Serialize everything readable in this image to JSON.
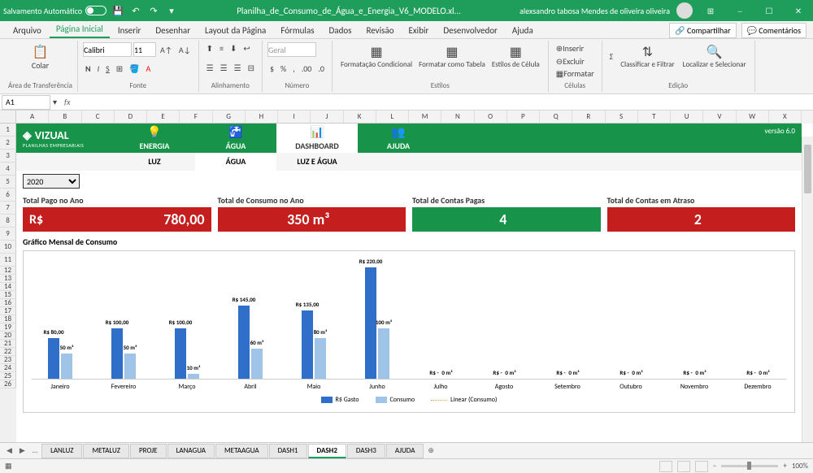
{
  "titlebar": {
    "autosave": "Salvamento Automático",
    "filename": "Planilha_de_Consumo_de_Água_e_Energia_V6_MODELO.xl...",
    "username": "alexsandro tabosa Mendes de oliveira oliveira"
  },
  "menu": {
    "items": [
      "Arquivo",
      "Página Inicial",
      "Inserir",
      "Desenhar",
      "Layout da Página",
      "Fórmulas",
      "Dados",
      "Revisão",
      "Exibir",
      "Desenvolvedor",
      "Ajuda"
    ],
    "active_index": 1,
    "share": "Compartilhar",
    "comments": "Comentários"
  },
  "ribbon": {
    "paste": "Colar",
    "clipboard_label": "Área de Transferência",
    "font_name": "Calibri",
    "font_size": "11",
    "font_label": "Fonte",
    "align_label": "Alinhamento",
    "number_format": "Geral",
    "number_label": "Número",
    "cond_format": "Formatação Condicional",
    "table_format": "Formatar como Tabela",
    "cell_styles": "Estilos de Célula",
    "styles_label": "Estilos",
    "insert": "Inserir",
    "delete": "Excluir",
    "format": "Formatar",
    "cells_label": "Células",
    "sort": "Classificar e Filtrar",
    "find": "Localizar e Selecionar",
    "editing_label": "Edição"
  },
  "formula": {
    "name_box": "A1",
    "fx": "fx"
  },
  "columns": [
    "A",
    "B",
    "C",
    "D",
    "E",
    "F",
    "G",
    "H",
    "I",
    "J",
    "K",
    "L",
    "M",
    "N",
    "O",
    "P",
    "Q",
    "R",
    "S",
    "T",
    "U",
    "V",
    "W",
    "X"
  ],
  "rows": [
    "1",
    "2",
    "3",
    "4",
    "5",
    "6",
    "7",
    "8",
    "9",
    "10",
    "11",
    "12",
    "13",
    "14",
    "15",
    "16",
    "17",
    "18",
    "19",
    "20",
    "21",
    "22",
    "23",
    "24",
    "25",
    "26"
  ],
  "dashboard": {
    "brand": "VIZUAL",
    "brand_sub": "PLANILHAS EMPRESARIAIS",
    "version": "versão 6.0",
    "nav": [
      "ENERGIA",
      "ÁGUA",
      "DASHBOARD",
      "AJUDA"
    ],
    "nav_active": 2,
    "sub_nav": [
      "LUZ",
      "ÁGUA",
      "LUZ E ÁGUA"
    ],
    "sub_active": 1,
    "year": "2020",
    "kpis": [
      {
        "label": "Total Pago no Ano",
        "prefix": "R$",
        "value": "780,00",
        "color": "red"
      },
      {
        "label": "Total de Consumo no Ano",
        "prefix": "",
        "value": "350 m³",
        "color": "red"
      },
      {
        "label": "Total de Contas Pagas",
        "prefix": "",
        "value": "4",
        "color": "green"
      },
      {
        "label": "Total de Contas em Atraso",
        "prefix": "",
        "value": "2",
        "color": "red"
      }
    ],
    "chart_title": "Gráfico Mensal de Consumo",
    "chart": {
      "type": "bar",
      "months": [
        "Janeiro",
        "Fevereiro",
        "Março",
        "Abril",
        "Maio",
        "Junho",
        "Julho",
        "Agosto",
        "Setembro",
        "Outubro",
        "Novembro",
        "Dezembro"
      ],
      "series1": [
        80,
        100,
        100,
        145,
        135,
        220,
        0,
        0,
        0,
        0,
        0,
        0
      ],
      "series2": [
        50,
        50,
        10,
        60,
        80,
        100,
        0,
        0,
        0,
        0,
        0,
        0
      ],
      "labels1": [
        "R$ 80,00",
        "R$ 100,00",
        "R$ 100,00",
        "R$ 145,00",
        "R$ 135,00",
        "R$ 220,00",
        "R$ -",
        "R$ -",
        "R$ -",
        "R$ -",
        "R$ -",
        "R$ -"
      ],
      "labels2": [
        "50 m³",
        "50 m³",
        "10 m³",
        "60 m³",
        "80 m³",
        "100 m³",
        "0 m³",
        "0 m³",
        "0 m³",
        "0 m³",
        "0 m³",
        "0 m³"
      ],
      "max_value": 220,
      "colors": {
        "s1": "#2f6fc9",
        "s2": "#a0c4e8",
        "trend": "#d4a056"
      },
      "legend": [
        "R$ Gasto",
        "Consumo",
        "Linear (Consumo)"
      ]
    }
  },
  "tabs": [
    "LANLUZ",
    "METALUZ",
    "PROJE",
    "LANAGUA",
    "METAAGUA",
    "DASH1",
    "DASH2",
    "DASH3",
    "AJUDA"
  ],
  "tab_active": 6,
  "status": {
    "zoom": "100%"
  }
}
